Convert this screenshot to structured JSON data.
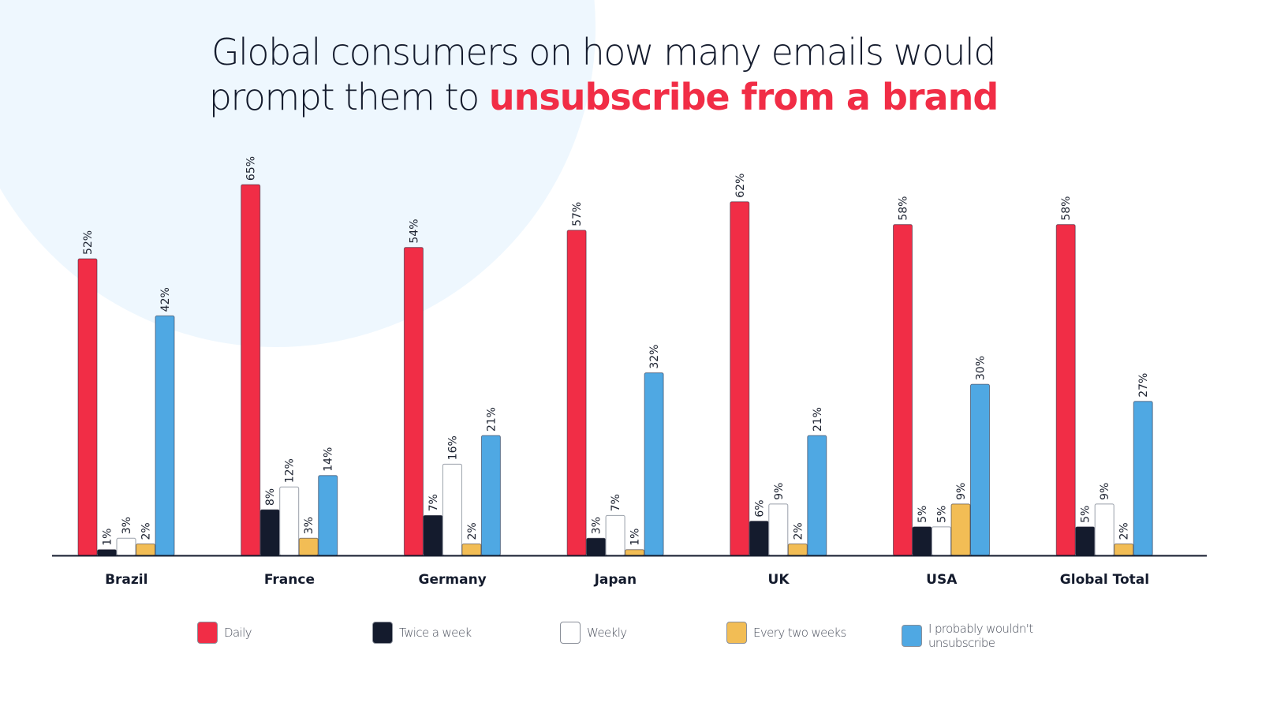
{
  "title": {
    "line1": "Global consumers on how many emails would",
    "line2_prefix": "prompt them to ",
    "line2_highlight": "unsubscribe from a brand"
  },
  "colors": {
    "title_text": "#141b2d",
    "highlight": "#f12d46",
    "background_circle": "#eef7fe"
  },
  "chart_data": {
    "type": "bar",
    "title": "Global consumers on how many emails would prompt them to unsubscribe from a brand",
    "xlabel": "",
    "ylabel": "",
    "ylim": [
      0,
      65
    ],
    "grid": false,
    "legend_position": "bottom",
    "categories": [
      "Brazil",
      "France",
      "Germany",
      "Japan",
      "UK",
      "USA",
      "Global Total"
    ],
    "series": [
      {
        "name": "Daily",
        "color": "#f12d46",
        "values": [
          52,
          65,
          54,
          57,
          62,
          58,
          58
        ]
      },
      {
        "name": "Twice a week",
        "color": "#141b2d",
        "values": [
          1,
          8,
          7,
          3,
          6,
          5,
          5
        ]
      },
      {
        "name": "Weekly",
        "color": "#ffffff",
        "values": [
          3,
          12,
          16,
          7,
          9,
          5,
          9
        ]
      },
      {
        "name": "Every two weeks",
        "color": "#f2bd55",
        "values": [
          2,
          3,
          2,
          1,
          2,
          9,
          2
        ]
      },
      {
        "name": "I probably wouldn't unsubscribe",
        "color": "#4fa8e3",
        "values": [
          42,
          14,
          21,
          32,
          21,
          30,
          27
        ]
      }
    ],
    "value_suffix": "%"
  },
  "legend": [
    {
      "label": "Daily",
      "color": "#f12d46"
    },
    {
      "label": "Twice a week",
      "color": "#141b2d"
    },
    {
      "label": "Weekly",
      "color": "#ffffff"
    },
    {
      "label": "Every two weeks",
      "color": "#f2bd55"
    },
    {
      "label": "I probably wouldn't unsubscribe",
      "label_line1": "I probably wouldn't",
      "label_line2": "unsubscribe",
      "color": "#4fa8e3"
    }
  ]
}
